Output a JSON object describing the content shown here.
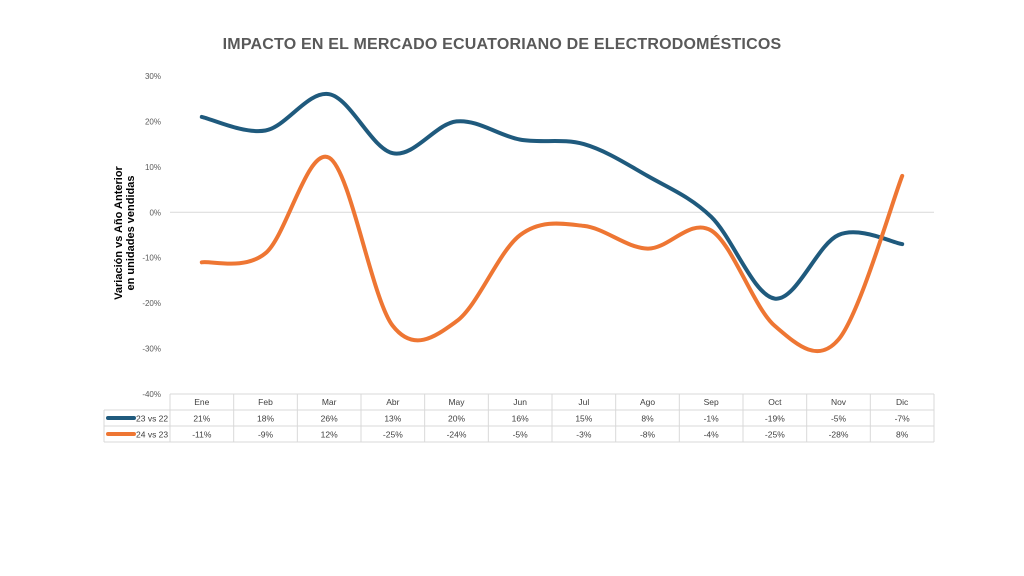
{
  "chart_data": {
    "type": "line",
    "title": "IMPACTO EN EL MERCADO ECUATORIANO DE ELECTRODOMÉSTICOS",
    "ylabel_line1": "Variación vs Año Anterior",
    "ylabel_line2": "en unidades vendidas",
    "categories": [
      "Ene",
      "Feb",
      "Mar",
      "Abr",
      "May",
      "Jun",
      "Jul",
      "Ago",
      "Sep",
      "Oct",
      "Nov",
      "Dic"
    ],
    "ylim": [
      -40,
      30
    ],
    "yticks": [
      "30%",
      "20%",
      "10%",
      "0%",
      "-10%",
      "-20%",
      "-30%",
      "-40%"
    ],
    "grid": "zero-line-only",
    "legend": "data-table",
    "series": [
      {
        "name": "23 vs 22",
        "color": "#1F5A7D",
        "values": [
          21,
          18,
          26,
          13,
          20,
          16,
          15,
          8,
          -1,
          -19,
          -5,
          -7
        ],
        "labels": [
          "21%",
          "18%",
          "26%",
          "13%",
          "20%",
          "16%",
          "15%",
          "8%",
          "-1%",
          "-19%",
          "-5%",
          "-7%"
        ]
      },
      {
        "name": "24 vs 23",
        "color": "#EE7633",
        "values": [
          -11,
          -9,
          12,
          -25,
          -24,
          -5,
          -3,
          -8,
          -4,
          -25,
          -28,
          8
        ],
        "labels": [
          "-11%",
          "-9%",
          "12%",
          "-25%",
          "-24%",
          "-5%",
          "-3%",
          "-8%",
          "-4%",
          "-25%",
          "-28%",
          "8%"
        ]
      }
    ]
  }
}
